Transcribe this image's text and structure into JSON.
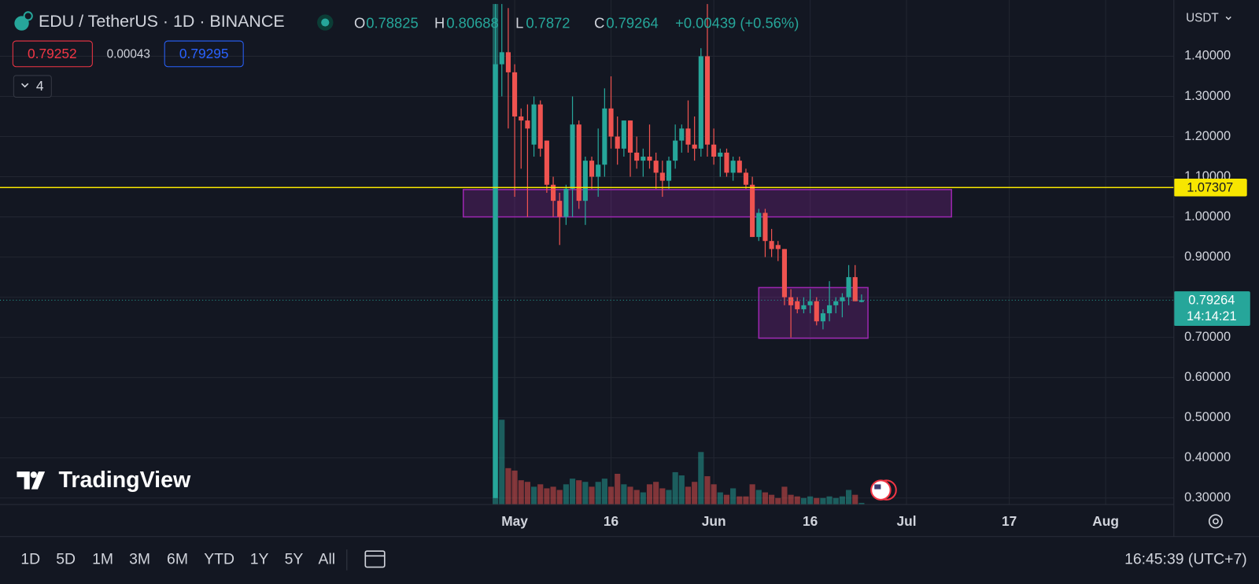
{
  "header": {
    "title": "EDU / TetherUS · 1D · BINANCE",
    "o_label": "O",
    "h_label": "H",
    "l_label": "L",
    "c_label": "C",
    "change_label": "+0.00439 (+0.56%)",
    "bid": "0.79252",
    "spread": "0.00043",
    "ask": "0.79295",
    "indicators_count": "4"
  },
  "price_axis": {
    "currency": "USDT",
    "countdown": "14:14:21"
  },
  "logo": "TradingView",
  "toolbar": {
    "ranges": [
      "1D",
      "5D",
      "1M",
      "3M",
      "6M",
      "YTD",
      "1Y",
      "5Y",
      "All"
    ],
    "clock": "16:45:39 (UTC+7)"
  },
  "chart_data": {
    "type": "candlestick",
    "up_color": "#26a69a",
    "down_color": "#ef5350",
    "grid": true,
    "x": [
      "Apr 28",
      "Apr 29",
      "Apr 30",
      "May 1",
      "May 2",
      "May 3",
      "May 4",
      "May 5",
      "May 6",
      "May 7",
      "May 8",
      "May 9",
      "May 10",
      "May 11",
      "May 12",
      "May 13",
      "May 14",
      "May 15",
      "May 16",
      "May 17",
      "May 18",
      "May 19",
      "May 20",
      "May 21",
      "May 22",
      "May 23",
      "May 24",
      "May 25",
      "May 26",
      "May 27",
      "May 28",
      "May 29",
      "May 30",
      "May 31",
      "Jun 1",
      "Jun 2",
      "Jun 3",
      "Jun 4",
      "Jun 5",
      "Jun 6",
      "Jun 7",
      "Jun 8",
      "Jun 9",
      "Jun 10",
      "Jun 11",
      "Jun 12",
      "Jun 13",
      "Jun 14",
      "Jun 15",
      "Jun 16",
      "Jun 17",
      "Jun 18",
      "Jun 19",
      "Jun 20",
      "Jun 21",
      "Jun 22",
      "Jun 23",
      "Jun 24"
    ],
    "open": [
      0.3,
      1.38,
      1.41,
      1.36,
      1.25,
      1.24,
      1.18,
      1.28,
      1.19,
      1.08,
      1.04,
      1.0,
      1.07,
      1.23,
      1.04,
      1.14,
      1.1,
      1.13,
      1.27,
      1.2,
      1.17,
      1.24,
      1.16,
      1.14,
      1.15,
      1.14,
      1.11,
      1.09,
      1.14,
      1.19,
      1.22,
      1.18,
      1.17,
      1.4,
      1.18,
      1.15,
      1.16,
      1.11,
      1.14,
      1.11,
      1.08,
      0.95,
      1.01,
      0.94,
      0.93,
      0.92,
      0.8,
      0.79,
      0.77,
      0.78,
      0.79,
      0.74,
      0.76,
      0.78,
      0.79,
      0.8,
      0.85,
      0.78825
    ],
    "high": [
      1.53,
      1.53,
      1.52,
      1.38,
      1.27,
      1.28,
      1.3,
      1.29,
      1.19,
      1.1,
      1.06,
      1.08,
      1.3,
      1.24,
      1.15,
      1.15,
      1.22,
      1.32,
      1.35,
      1.25,
      1.24,
      1.24,
      1.2,
      1.17,
      1.23,
      1.16,
      1.14,
      1.15,
      1.23,
      1.23,
      1.29,
      1.25,
      1.42,
      1.53,
      1.22,
      1.17,
      1.17,
      1.15,
      1.15,
      1.12,
      1.1,
      1.02,
      1.02,
      0.97,
      0.94,
      0.92,
      0.82,
      0.8,
      0.8,
      0.82,
      0.8,
      0.77,
      0.84,
      0.8,
      0.81,
      0.88,
      0.88,
      0.80688
    ],
    "low": [
      0.3,
      1.3,
      1.22,
      1.05,
      1.12,
      1.0,
      1.15,
      1.15,
      1.06,
      1.0,
      0.93,
      0.98,
      1.0,
      1.02,
      0.98,
      1.07,
      1.05,
      1.1,
      1.17,
      1.13,
      1.15,
      1.1,
      1.12,
      1.1,
      1.12,
      1.07,
      1.05,
      1.07,
      1.12,
      1.16,
      1.16,
      1.14,
      1.15,
      1.15,
      1.13,
      1.1,
      1.1,
      1.09,
      1.11,
      1.07,
      0.95,
      0.94,
      0.9,
      0.9,
      0.89,
      0.78,
      0.7,
      0.76,
      0.76,
      0.76,
      0.73,
      0.72,
      0.74,
      0.76,
      0.75,
      0.78,
      0.79,
      0.7872
    ],
    "close": [
      1.38,
      1.41,
      1.36,
      1.25,
      1.24,
      1.22,
      1.28,
      1.17,
      1.08,
      1.04,
      1.0,
      1.07,
      1.23,
      1.04,
      1.14,
      1.1,
      1.13,
      1.27,
      1.2,
      1.17,
      1.24,
      1.16,
      1.14,
      1.15,
      1.14,
      1.11,
      1.09,
      1.14,
      1.19,
      1.22,
      1.18,
      1.17,
      1.4,
      1.18,
      1.15,
      1.16,
      1.11,
      1.14,
      1.11,
      1.08,
      0.95,
      1.01,
      0.94,
      0.92,
      0.92,
      0.8,
      0.78,
      0.77,
      0.78,
      0.79,
      0.74,
      0.76,
      0.78,
      0.79,
      0.8,
      0.85,
      0.79,
      0.79264
    ],
    "volume": [
      620,
      105,
      45,
      42,
      30,
      28,
      22,
      25,
      20,
      22,
      18,
      25,
      32,
      30,
      28,
      22,
      28,
      32,
      22,
      38,
      25,
      22,
      18,
      15,
      25,
      28,
      20,
      18,
      40,
      36,
      22,
      28,
      65,
      35,
      25,
      15,
      12,
      20,
      10,
      10,
      25,
      18,
      15,
      12,
      8,
      22,
      12,
      10,
      8,
      10,
      8,
      8,
      10,
      8,
      10,
      18,
      12,
      2
    ],
    "ylim": [
      0.284,
      1.54
    ],
    "yticks": [
      {
        "value": 0.3,
        "label": "0.30000"
      },
      {
        "value": 0.4,
        "label": "0.40000"
      },
      {
        "value": 0.5,
        "label": "0.50000"
      },
      {
        "value": 0.6,
        "label": "0.60000"
      },
      {
        "value": 0.7,
        "label": "0.70000"
      },
      {
        "value": 0.8,
        "label": "0.80000"
      },
      {
        "value": 0.9,
        "label": "0.90000"
      },
      {
        "value": 1.0,
        "label": "1.00000"
      },
      {
        "value": 1.1,
        "label": "1.10000"
      },
      {
        "value": 1.2,
        "label": "1.20000"
      },
      {
        "value": 1.3,
        "label": "1.30000"
      },
      {
        "value": 1.4,
        "label": "1.40000"
      }
    ],
    "xticks": [
      {
        "value": "May 1",
        "label": "May"
      },
      {
        "value": "May 16",
        "label": "16"
      },
      {
        "value": "Jun 1",
        "label": "Jun"
      },
      {
        "value": "Jun 16",
        "label": "16"
      },
      {
        "value": "Jul 1",
        "label": "Jul"
      },
      {
        "value": "Jul 17",
        "label": "17"
      },
      {
        "value": "Aug 1",
        "label": "Aug"
      }
    ],
    "hline": {
      "value": 1.07307,
      "color": "#f7e600"
    },
    "zones": [
      {
        "start": "Apr 23",
        "end": "Jul 8",
        "top": 1.068,
        "bottom": 1.0,
        "color": "#9c27b0"
      },
      {
        "start": "Jun 8",
        "end": "Jun 25",
        "top": 0.824,
        "bottom": 0.698,
        "color": "#9c27b0"
      }
    ]
  }
}
